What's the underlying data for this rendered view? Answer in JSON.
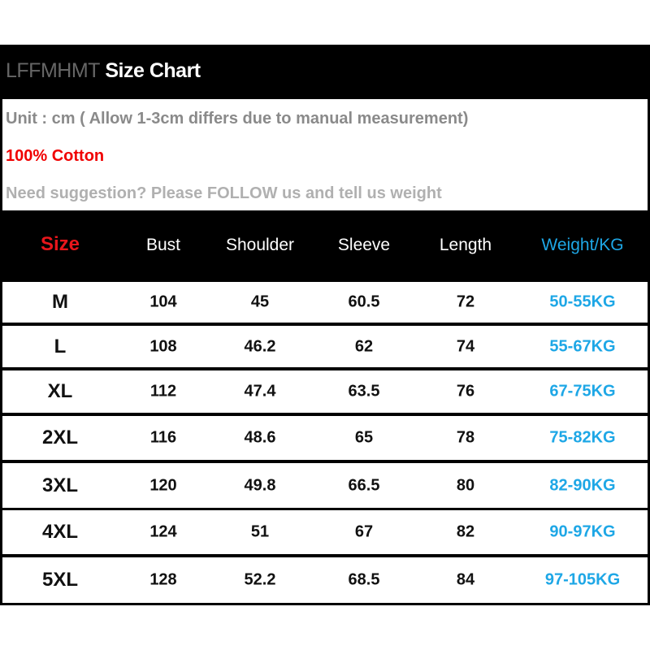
{
  "header": {
    "brand": "LFFMHMT",
    "title": "Size Chart"
  },
  "info": {
    "unit_note": "Unit : cm ( Allow 1-3cm differs due to manual measurement)",
    "material": "100% Cotton",
    "suggestion": "Need suggestion? Please FOLLOW us and tell us weight"
  },
  "colors": {
    "size_header": "#e8161b",
    "weight": "#1ea7e6",
    "material": "#f00000"
  },
  "table": {
    "columns": [
      "Size",
      "Bust",
      "Shoulder",
      "Sleeve",
      "Length",
      "Weight/KG"
    ],
    "rows": [
      [
        "M",
        "104",
        "45",
        "60.5",
        "72",
        "50-55KG"
      ],
      [
        "L",
        "108",
        "46.2",
        "62",
        "74",
        "55-67KG"
      ],
      [
        "XL",
        "112",
        "47.4",
        "63.5",
        "76",
        "67-75KG"
      ],
      [
        "2XL",
        "116",
        "48.6",
        "65",
        "78",
        "75-82KG"
      ],
      [
        "3XL",
        "120",
        "49.8",
        "66.5",
        "80",
        "82-90KG"
      ],
      [
        "4XL",
        "124",
        "51",
        "67",
        "82",
        "90-97KG"
      ],
      [
        "5XL",
        "128",
        "52.2",
        "68.5",
        "84",
        "97-105KG"
      ]
    ]
  }
}
